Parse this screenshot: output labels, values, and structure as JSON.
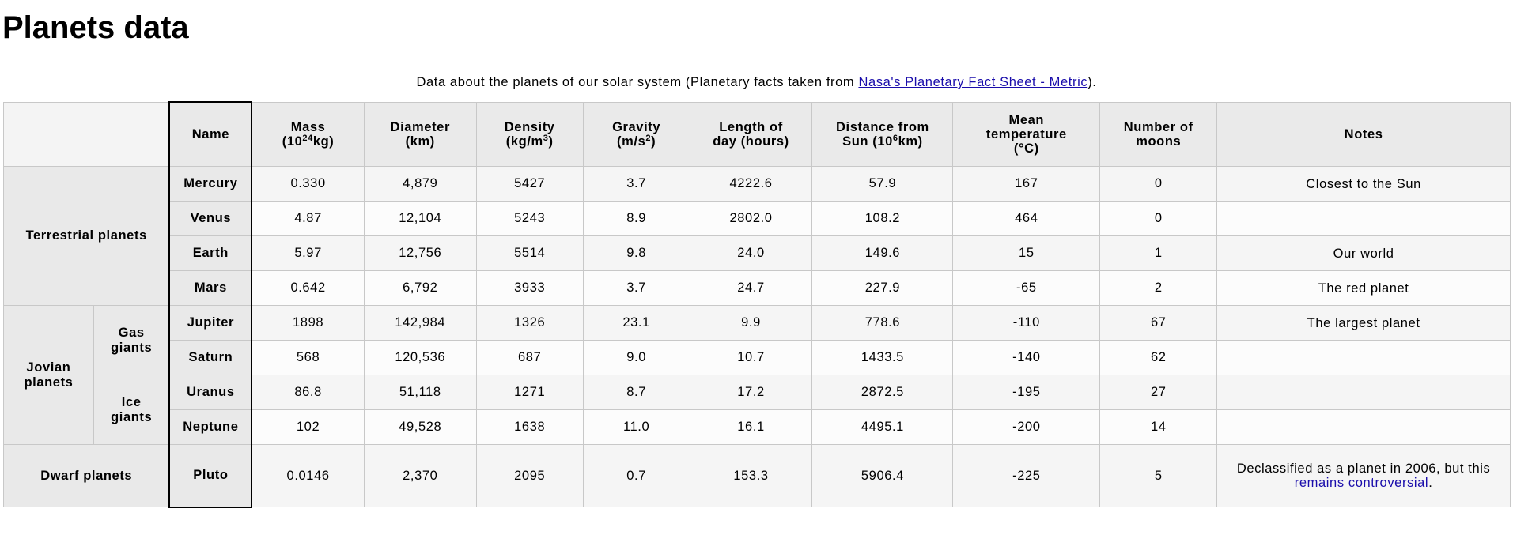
{
  "page": {
    "title": "Planets data",
    "caption_prefix": "Data about the planets of our solar system (Planetary facts taken from ",
    "caption_link": "Nasa's Planetary Fact Sheet - Metric",
    "caption_suffix": ")."
  },
  "table": {
    "headers": {
      "name": "Name",
      "mass": {
        "pre": "Mass",
        "pre2": "(10",
        "sup": "24",
        "post": "kg)"
      },
      "diameter": {
        "line1": "Diameter",
        "line2": "(km)"
      },
      "density": {
        "pre": "Density",
        "pre2": "(kg/m",
        "sup": "3",
        "post": ")"
      },
      "gravity": {
        "pre": "Gravity",
        "pre2": "(m/s",
        "sup": "2",
        "post": ")"
      },
      "day_length": {
        "line1": "Length of",
        "line2": "day (hours)"
      },
      "distance": {
        "pre": "Distance from",
        "pre2": "Sun (10",
        "sup": "6",
        "post": "km)"
      },
      "temperature": {
        "line1": "Mean",
        "line2": "temperature",
        "line3": "(°C)"
      },
      "moons": {
        "line1": "Number of",
        "line2": "moons"
      },
      "notes": "Notes"
    },
    "groups": {
      "terrestrial": "Terrestrial planets",
      "jovian": {
        "line1": "Jovian",
        "line2": "planets"
      },
      "gas_giants": {
        "line1": "Gas",
        "line2": "giants"
      },
      "ice_giants": {
        "line1": "Ice",
        "line2": "giants"
      },
      "dwarf": "Dwarf planets"
    },
    "rows": [
      {
        "name": "Mercury",
        "mass": "0.330",
        "diameter": "4,879",
        "density": "5427",
        "gravity": "3.7",
        "day": "4222.6",
        "distance": "57.9",
        "temp": "167",
        "moons": "0",
        "notes": "Closest to the Sun"
      },
      {
        "name": "Venus",
        "mass": "4.87",
        "diameter": "12,104",
        "density": "5243",
        "gravity": "8.9",
        "day": "2802.0",
        "distance": "108.2",
        "temp": "464",
        "moons": "0",
        "notes": ""
      },
      {
        "name": "Earth",
        "mass": "5.97",
        "diameter": "12,756",
        "density": "5514",
        "gravity": "9.8",
        "day": "24.0",
        "distance": "149.6",
        "temp": "15",
        "moons": "1",
        "notes": "Our world"
      },
      {
        "name": "Mars",
        "mass": "0.642",
        "diameter": "6,792",
        "density": "3933",
        "gravity": "3.7",
        "day": "24.7",
        "distance": "227.9",
        "temp": "-65",
        "moons": "2",
        "notes": "The red planet"
      },
      {
        "name": "Jupiter",
        "mass": "1898",
        "diameter": "142,984",
        "density": "1326",
        "gravity": "23.1",
        "day": "9.9",
        "distance": "778.6",
        "temp": "-110",
        "moons": "67",
        "notes": "The largest planet"
      },
      {
        "name": "Saturn",
        "mass": "568",
        "diameter": "120,536",
        "density": "687",
        "gravity": "9.0",
        "day": "10.7",
        "distance": "1433.5",
        "temp": "-140",
        "moons": "62",
        "notes": ""
      },
      {
        "name": "Uranus",
        "mass": "86.8",
        "diameter": "51,118",
        "density": "1271",
        "gravity": "8.7",
        "day": "17.2",
        "distance": "2872.5",
        "temp": "-195",
        "moons": "27",
        "notes": ""
      },
      {
        "name": "Neptune",
        "mass": "102",
        "diameter": "49,528",
        "density": "1638",
        "gravity": "11.0",
        "day": "16.1",
        "distance": "4495.1",
        "temp": "-200",
        "moons": "14",
        "notes": ""
      },
      {
        "name": "Pluto",
        "mass": "0.0146",
        "diameter": "2,370",
        "density": "2095",
        "gravity": "0.7",
        "day": "153.3",
        "distance": "5906.4",
        "temp": "-225",
        "moons": "5",
        "notes": ""
      }
    ],
    "pluto_notes": {
      "prefix": "Declassified as a planet in 2006, but this ",
      "link": "remains controversial",
      "suffix": "."
    }
  }
}
